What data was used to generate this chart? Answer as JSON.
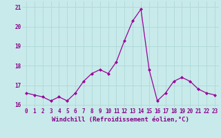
{
  "x": [
    0,
    1,
    2,
    3,
    4,
    5,
    6,
    7,
    8,
    9,
    10,
    11,
    12,
    13,
    14,
    15,
    16,
    17,
    18,
    19,
    20,
    21,
    22,
    23
  ],
  "y": [
    16.6,
    16.5,
    16.4,
    16.2,
    16.4,
    16.2,
    16.6,
    17.2,
    17.6,
    17.8,
    17.6,
    18.2,
    19.3,
    20.3,
    20.9,
    17.8,
    16.2,
    16.6,
    17.2,
    17.4,
    17.2,
    16.8,
    16.6,
    16.5
  ],
  "line_color": "#990099",
  "marker": "D",
  "marker_size": 2,
  "xlabel": "Windchill (Refroidissement éolien,°C)",
  "xlabel_fontsize": 6.5,
  "ylim": [
    15.85,
    21.3
  ],
  "xlim": [
    -0.5,
    23.5
  ],
  "yticks": [
    16,
    17,
    18,
    19,
    20,
    21
  ],
  "xticks": [
    0,
    1,
    2,
    3,
    4,
    5,
    6,
    7,
    8,
    9,
    10,
    11,
    12,
    13,
    14,
    15,
    16,
    17,
    18,
    19,
    20,
    21,
    22,
    23
  ],
  "xtick_labels": [
    "0",
    "1",
    "2",
    "3",
    "4",
    "5",
    "6",
    "7",
    "8",
    "9",
    "10",
    "11",
    "12",
    "13",
    "14",
    "15",
    "16",
    "17",
    "18",
    "19",
    "20",
    "21",
    "22",
    "23"
  ],
  "grid_color": "#b0d8d8",
  "bg_color": "#c8eaea",
  "tick_fontsize": 5.5,
  "line_width": 0.9,
  "label_color": "#880088"
}
